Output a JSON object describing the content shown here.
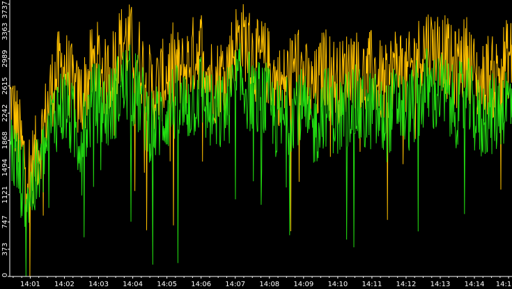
{
  "chart_data": {
    "type": "line",
    "title": "",
    "xlabel": "",
    "ylabel": "",
    "x_ticks": [
      "14:01",
      "14:02",
      "14:03",
      "14:04",
      "14:05",
      "14:06",
      "14:07",
      "14:08",
      "14:09",
      "14:10",
      "14:11",
      "14:12",
      "14:13",
      "14:14",
      "14:1"
    ],
    "y_ticks": [
      "0",
      "373",
      "747",
      "1121",
      "1494",
      "1868",
      "2242",
      "2615",
      "2989",
      "3363",
      "3737"
    ],
    "xlim_minutes": [
      0.4,
      15.1
    ],
    "ylim": [
      0,
      3737
    ],
    "grid": false,
    "legend": "none",
    "colors": {
      "background": "#000000",
      "axis": "#ffffff",
      "series_a": "#ffc000",
      "series_b": "#22dd11"
    },
    "series": [
      {
        "color": "#ffc000",
        "x": [
          0.4,
          0.6,
          0.8,
          1.0,
          1.2,
          1.4,
          1.6,
          1.8,
          2.0,
          2.2,
          2.4,
          2.6,
          2.8,
          3.0,
          3.2,
          3.4,
          3.6,
          3.8,
          4.0,
          4.2,
          4.4,
          4.6,
          4.8,
          5.0,
          5.2,
          5.4,
          5.6,
          5.8,
          6.0,
          6.2,
          6.4,
          6.6,
          6.8,
          7.0,
          7.2,
          7.4,
          7.6,
          7.8,
          8.0,
          8.2,
          8.4,
          8.6,
          8.8,
          9.0,
          9.2,
          9.4,
          9.6,
          9.8,
          10.0,
          10.2,
          10.4,
          10.6,
          10.8,
          11.0,
          11.2,
          11.4,
          11.6,
          11.8,
          12.0,
          12.2,
          12.4,
          12.6,
          12.8,
          13.0,
          13.2,
          13.4,
          13.6,
          13.8,
          14.0,
          14.2,
          14.4,
          14.6,
          14.8,
          15.0
        ],
        "values": [
          2450,
          2100,
          1650,
          1450,
          1700,
          2050,
          2550,
          2800,
          2900,
          2650,
          2400,
          2550,
          2900,
          2950,
          2700,
          2850,
          3150,
          3250,
          3150,
          3000,
          2700,
          2550,
          2650,
          2750,
          2950,
          2750,
          2900,
          3050,
          3150,
          2850,
          2650,
          2800,
          2900,
          3200,
          3300,
          3150,
          2950,
          3000,
          2850,
          2650,
          2600,
          2800,
          2950,
          2750,
          2500,
          2600,
          2900,
          2800,
          2650,
          2750,
          2950,
          2800,
          2700,
          2850,
          2700,
          2600,
          2850,
          2950,
          2700,
          2900,
          3050,
          3200,
          3100,
          3150,
          3000,
          2800,
          2950,
          3050,
          2750,
          2600,
          2800,
          2700,
          2900,
          3000
        ]
      },
      {
        "color": "#22dd11",
        "x": [
          0.4,
          0.6,
          0.8,
          1.0,
          1.2,
          1.4,
          1.6,
          1.8,
          2.0,
          2.2,
          2.4,
          2.6,
          2.8,
          3.0,
          3.2,
          3.4,
          3.6,
          3.8,
          4.0,
          4.2,
          4.4,
          4.6,
          4.8,
          5.0,
          5.2,
          5.4,
          5.6,
          5.8,
          6.0,
          6.2,
          6.4,
          6.6,
          6.8,
          7.0,
          7.2,
          7.4,
          7.6,
          7.8,
          8.0,
          8.2,
          8.4,
          8.6,
          8.8,
          9.0,
          9.2,
          9.4,
          9.6,
          9.8,
          10.0,
          10.2,
          10.4,
          10.6,
          10.8,
          11.0,
          11.2,
          11.4,
          11.6,
          11.8,
          12.0,
          12.2,
          12.4,
          12.6,
          12.8,
          13.0,
          13.2,
          13.4,
          13.6,
          13.8,
          14.0,
          14.2,
          14.4,
          14.6,
          14.8,
          15.0
        ],
        "values": [
          1850,
          1550,
          1250,
          1150,
          1350,
          1650,
          2050,
          2300,
          2350,
          2150,
          1900,
          2050,
          2350,
          2400,
          2250,
          2350,
          2550,
          2650,
          2600,
          2450,
          2200,
          2050,
          2150,
          2250,
          2400,
          2250,
          2350,
          2450,
          2550,
          2300,
          2150,
          2250,
          2350,
          2600,
          2650,
          2550,
          2400,
          2450,
          2300,
          2150,
          2100,
          2250,
          2400,
          2250,
          2000,
          2100,
          2350,
          2300,
          2150,
          2250,
          2400,
          2300,
          2200,
          2300,
          2200,
          2100,
          2300,
          2400,
          2200,
          2350,
          2450,
          2600,
          2500,
          2550,
          2450,
          2300,
          2400,
          2450,
          2250,
          2100,
          2250,
          2200,
          2350,
          2400
        ]
      }
    ]
  }
}
